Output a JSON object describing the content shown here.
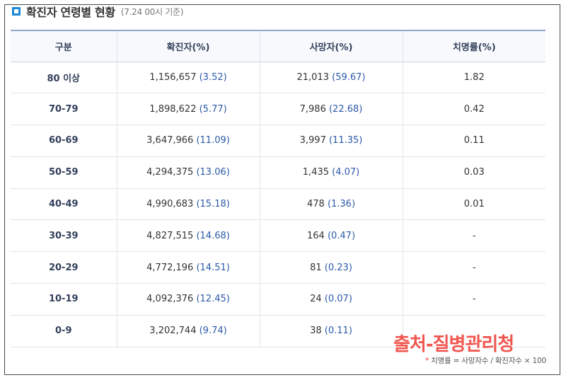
{
  "title": "확진자 연령별 현황",
  "title_note": "(7.24 00시 기준)",
  "table": {
    "headers": [
      "구분",
      "확진자(%)",
      "사망자(%)",
      "치명률(%)"
    ],
    "rows": [
      {
        "age": "80 이상",
        "cases": "1,156,657",
        "cases_pct": "(3.52)",
        "deaths": "21,013",
        "deaths_pct": "(59.67)",
        "fatality": "1.82"
      },
      {
        "age": "70-79",
        "cases": "1,898,622",
        "cases_pct": "(5.77)",
        "deaths": "7,986",
        "deaths_pct": "(22.68)",
        "fatality": "0.42"
      },
      {
        "age": "60-69",
        "cases": "3,647,966",
        "cases_pct": "(11.09)",
        "deaths": "3,997",
        "deaths_pct": "(11.35)",
        "fatality": "0.11"
      },
      {
        "age": "50-59",
        "cases": "4,294,375",
        "cases_pct": "(13.06)",
        "deaths": "1,435",
        "deaths_pct": "(4.07)",
        "fatality": "0.03"
      },
      {
        "age": "40-49",
        "cases": "4,990,683",
        "cases_pct": "(15.18)",
        "deaths": "478",
        "deaths_pct": "(1.36)",
        "fatality": "0.01"
      },
      {
        "age": "30-39",
        "cases": "4,827,515",
        "cases_pct": "(14.68)",
        "deaths": "164",
        "deaths_pct": "(0.47)",
        "fatality": "-"
      },
      {
        "age": "20-29",
        "cases": "4,772,196",
        "cases_pct": "(14.51)",
        "deaths": "81",
        "deaths_pct": "(0.23)",
        "fatality": "-"
      },
      {
        "age": "10-19",
        "cases": "4,092,376",
        "cases_pct": "(12.45)",
        "deaths": "24",
        "deaths_pct": "(0.07)",
        "fatality": "-"
      },
      {
        "age": "0-9",
        "cases": "3,202,744",
        "cases_pct": "(9.74)",
        "deaths": "38",
        "deaths_pct": "(0.11)",
        "fatality": ""
      }
    ]
  },
  "watermark": "출처-질병관리청",
  "footnote": {
    "marker": "*",
    "text": "치명률 = 사망자수 / 확진자수 × 100"
  },
  "colors": {
    "accent": "#1e88d6",
    "header_text": "#34405c",
    "percent_text": "#2b5aa8",
    "watermark": "#f0564f",
    "footnote_marker": "#e53935"
  }
}
